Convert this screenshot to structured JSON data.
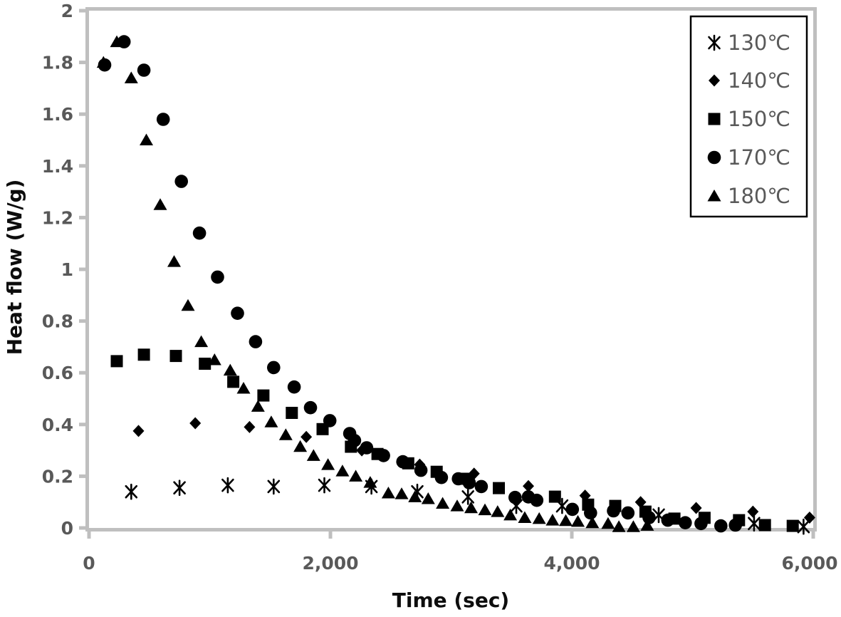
{
  "figure": {
    "background": "#ffffff",
    "axis_color": "#bfbfbf",
    "marker_color": "#000000",
    "tick_label_color": "#595959",
    "axis_title_color": "#0d0d0d",
    "legend_text_color": "#595959",
    "legend_border_color": "#000000"
  },
  "chart_data": {
    "type": "scatter",
    "title": "",
    "xlabel": "Time (sec)",
    "ylabel": "Heat flow (W/g)",
    "xlim": [
      0,
      6000
    ],
    "ylim": [
      0,
      2
    ],
    "x_ticks": [
      0,
      2000,
      4000,
      6000
    ],
    "x_tick_labels": [
      "0",
      "2,000",
      "4,000",
      "6,000"
    ],
    "y_ticks": [
      0,
      0.2,
      0.4,
      0.6,
      0.8,
      1,
      1.2,
      1.4,
      1.6,
      1.8,
      2
    ],
    "y_tick_labels": [
      "0",
      "0.2",
      "0.4",
      "0.6",
      "0.8",
      "1",
      "1.2",
      "1.4",
      "1.6",
      "1.8",
      "2"
    ],
    "grid": false,
    "legend": {
      "position": "top-right",
      "border": true
    },
    "series": [
      {
        "id": "130c",
        "name": "130℃",
        "marker": "asterisk",
        "points": [
          [
            350,
            0.14
          ],
          [
            750,
            0.155
          ],
          [
            1150,
            0.165
          ],
          [
            1530,
            0.16
          ],
          [
            1950,
            0.165
          ],
          [
            2340,
            0.16
          ],
          [
            2720,
            0.14
          ],
          [
            3140,
            0.12
          ],
          [
            3540,
            0.085
          ],
          [
            3920,
            0.085
          ],
          [
            4720,
            0.05
          ],
          [
            5510,
            0.017
          ],
          [
            5920,
            0.005
          ]
        ]
      },
      {
        "id": "140c",
        "name": "140℃",
        "marker": "diamond",
        "points": [
          [
            410,
            0.375
          ],
          [
            880,
            0.405
          ],
          [
            1330,
            0.39
          ],
          [
            1800,
            0.352
          ],
          [
            2260,
            0.3
          ],
          [
            2740,
            0.245
          ],
          [
            3190,
            0.21
          ],
          [
            3640,
            0.162
          ],
          [
            4110,
            0.125
          ],
          [
            4570,
            0.1
          ],
          [
            5030,
            0.077
          ],
          [
            5500,
            0.063
          ],
          [
            5970,
            0.04
          ]
        ]
      },
      {
        "id": "150c",
        "name": "150℃",
        "marker": "square",
        "points": [
          [
            230,
            0.645
          ],
          [
            455,
            0.67
          ],
          [
            720,
            0.665
          ],
          [
            960,
            0.635
          ],
          [
            1195,
            0.565
          ],
          [
            1445,
            0.512
          ],
          [
            1680,
            0.445
          ],
          [
            1935,
            0.382
          ],
          [
            2170,
            0.314
          ],
          [
            2390,
            0.286
          ],
          [
            2645,
            0.25
          ],
          [
            2880,
            0.217
          ],
          [
            3130,
            0.19
          ],
          [
            3395,
            0.154
          ],
          [
            3860,
            0.121
          ],
          [
            4135,
            0.09
          ],
          [
            4360,
            0.085
          ],
          [
            4610,
            0.063
          ],
          [
            4850,
            0.036
          ],
          [
            5100,
            0.039
          ],
          [
            5385,
            0.03
          ],
          [
            5600,
            0.011
          ],
          [
            5830,
            0.008
          ]
        ]
      },
      {
        "id": "170c",
        "name": "170℃",
        "marker": "circle",
        "points": [
          [
            130,
            1.79
          ],
          [
            290,
            1.88
          ],
          [
            455,
            1.77
          ],
          [
            615,
            1.58
          ],
          [
            765,
            1.34
          ],
          [
            915,
            1.14
          ],
          [
            1065,
            0.97
          ],
          [
            1230,
            0.83
          ],
          [
            1380,
            0.72
          ],
          [
            1530,
            0.62
          ],
          [
            1700,
            0.545
          ],
          [
            1835,
            0.465
          ],
          [
            1995,
            0.415
          ],
          [
            2160,
            0.365
          ],
          [
            2200,
            0.338
          ],
          [
            2300,
            0.31
          ],
          [
            2440,
            0.28
          ],
          [
            2600,
            0.256
          ],
          [
            2750,
            0.223
          ],
          [
            2920,
            0.195
          ],
          [
            3060,
            0.19
          ],
          [
            3150,
            0.175
          ],
          [
            3250,
            0.16
          ],
          [
            3530,
            0.118
          ],
          [
            3640,
            0.12
          ],
          [
            3710,
            0.107
          ],
          [
            4005,
            0.072
          ],
          [
            4155,
            0.058
          ],
          [
            4345,
            0.066
          ],
          [
            4465,
            0.058
          ],
          [
            4640,
            0.04
          ],
          [
            4795,
            0.03
          ],
          [
            4940,
            0.02
          ],
          [
            5070,
            0.017
          ],
          [
            5235,
            0.008
          ],
          [
            5355,
            0.011
          ]
        ]
      },
      {
        "id": "180c",
        "name": "180℃",
        "marker": "triangle",
        "points": [
          [
            120,
            1.8
          ],
          [
            230,
            1.88
          ],
          [
            350,
            1.74
          ],
          [
            475,
            1.5
          ],
          [
            590,
            1.25
          ],
          [
            705,
            1.03
          ],
          [
            820,
            0.86
          ],
          [
            930,
            0.72
          ],
          [
            1040,
            0.65
          ],
          [
            1170,
            0.61
          ],
          [
            1280,
            0.54
          ],
          [
            1400,
            0.47
          ],
          [
            1510,
            0.41
          ],
          [
            1630,
            0.36
          ],
          [
            1750,
            0.315
          ],
          [
            1860,
            0.28
          ],
          [
            1980,
            0.245
          ],
          [
            2100,
            0.22
          ],
          [
            2210,
            0.2
          ],
          [
            2330,
            0.176
          ],
          [
            2480,
            0.135
          ],
          [
            2590,
            0.132
          ],
          [
            2700,
            0.12
          ],
          [
            2810,
            0.113
          ],
          [
            2930,
            0.095
          ],
          [
            3050,
            0.085
          ],
          [
            3165,
            0.078
          ],
          [
            3280,
            0.07
          ],
          [
            3385,
            0.063
          ],
          [
            3490,
            0.05
          ],
          [
            3610,
            0.04
          ],
          [
            3730,
            0.036
          ],
          [
            3840,
            0.03
          ],
          [
            3950,
            0.028
          ],
          [
            4050,
            0.025
          ],
          [
            4170,
            0.02
          ],
          [
            4300,
            0.017
          ],
          [
            4390,
            0.005
          ],
          [
            4510,
            0.005
          ],
          [
            4625,
            0.01
          ]
        ]
      }
    ]
  }
}
